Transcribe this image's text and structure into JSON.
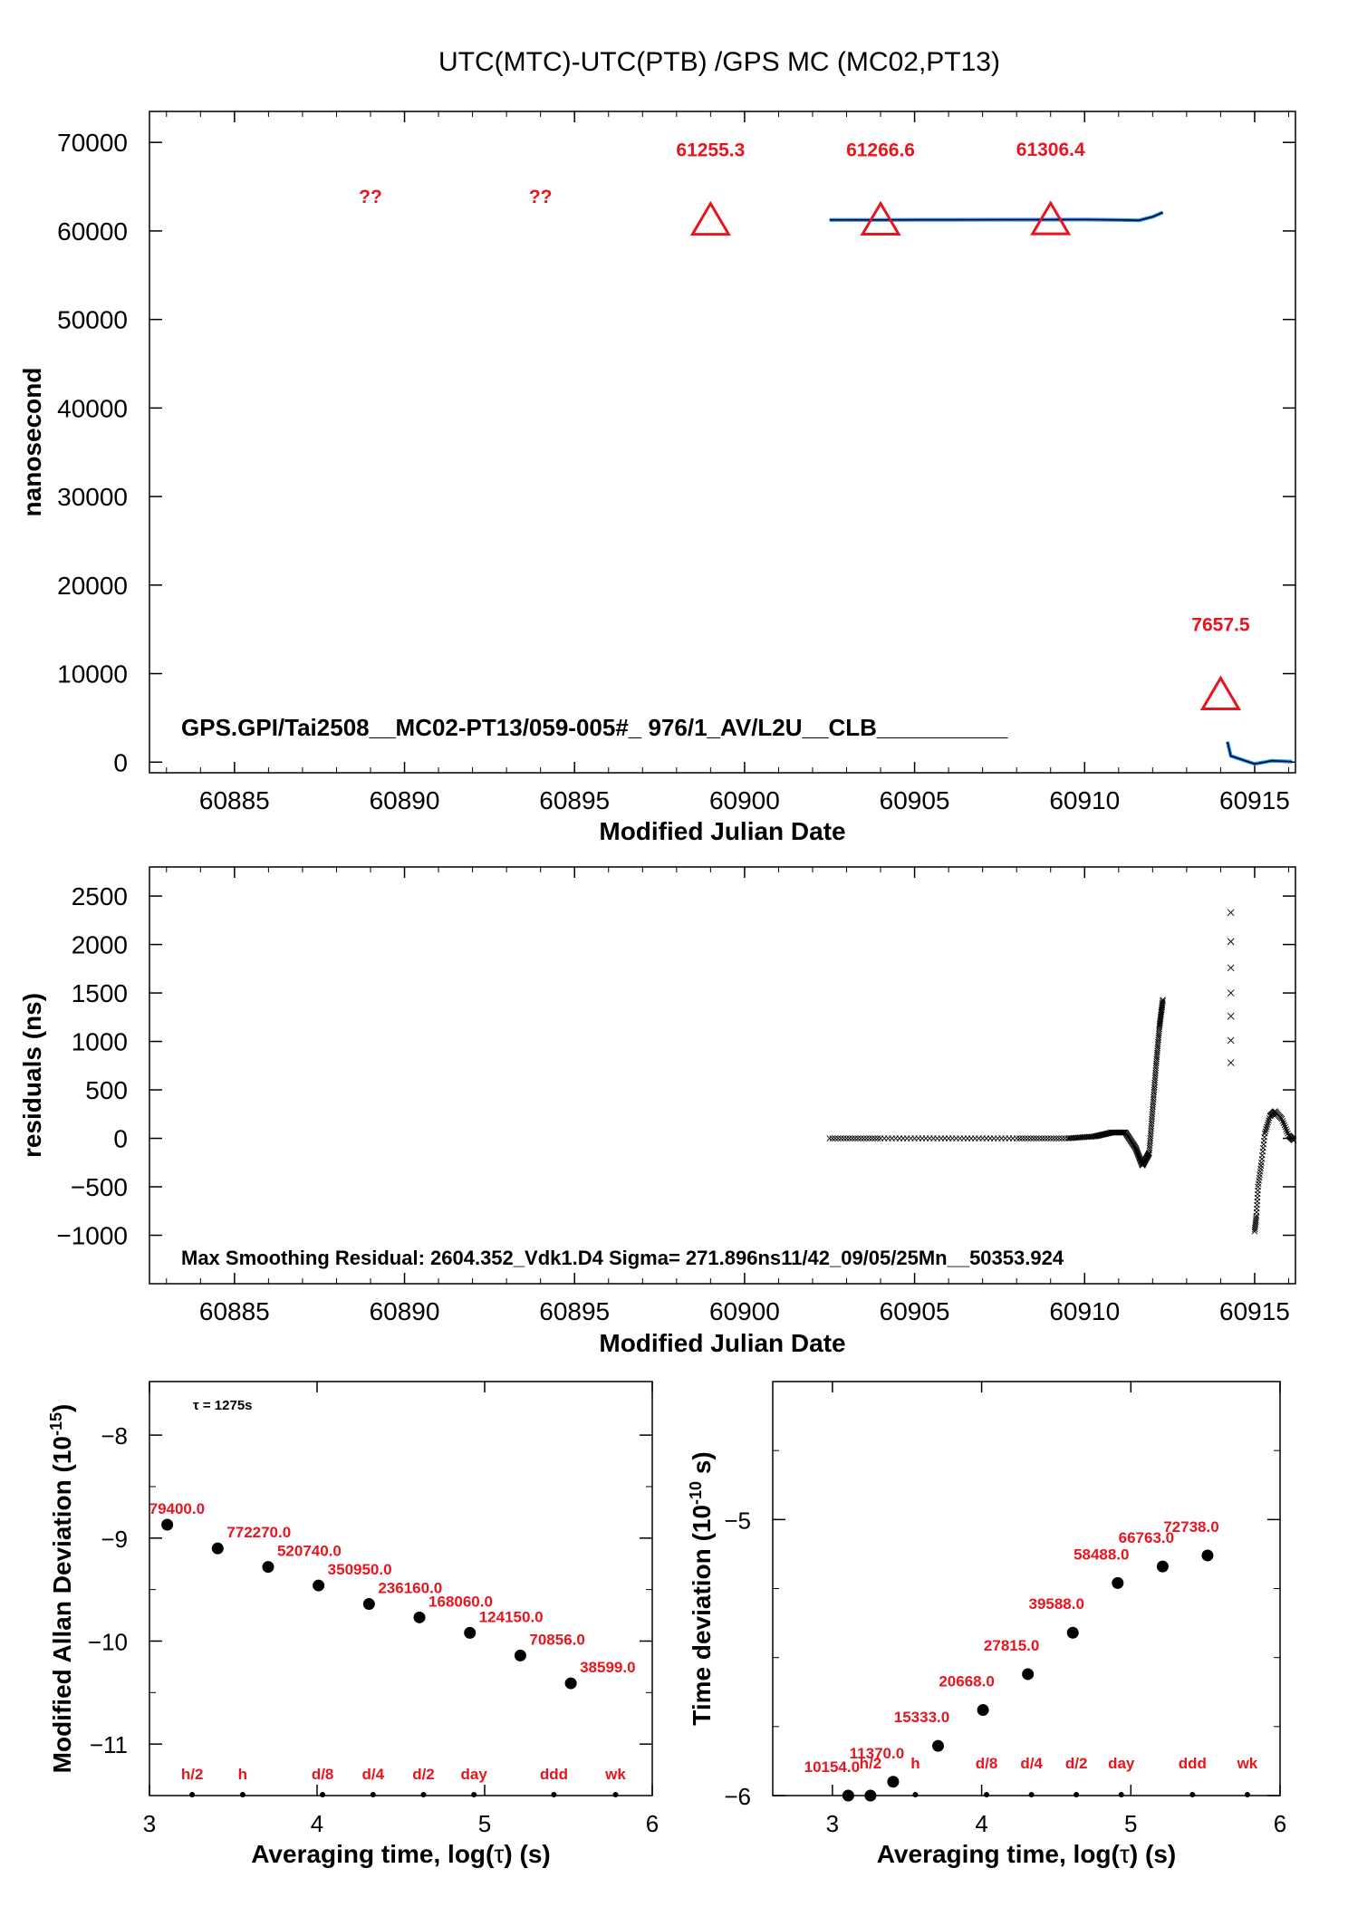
{
  "page_title": "UTC(MTC)-UTC(PTB)  /GPS  MC  (MC02,PT13)",
  "colors": {
    "marker": "#e8141e",
    "fit": "#1e90ff",
    "data": "#000000"
  },
  "chart_data": [
    {
      "id": "offset",
      "type": "line",
      "xlabel": "Modified Julian Date",
      "ylabel": "nanosecond",
      "xlim": [
        60882.5,
        60916.2
      ],
      "ylim": [
        -1200,
        73500
      ],
      "xticks": [
        60885,
        60890,
        60895,
        60900,
        60905,
        60910,
        60915
      ],
      "xtick_labels": [
        "60885",
        "60890",
        "60895",
        "60900",
        "60905",
        "60910",
        "60915"
      ],
      "yticks": [
        0,
        10000,
        20000,
        30000,
        40000,
        50000,
        60000,
        70000
      ],
      "ytick_labels": [
        "0",
        "10000",
        "20000",
        "30000",
        "40000",
        "50000",
        "60000",
        "70000"
      ],
      "series": [
        {
          "segments": [
            {
              "x": [
                60902.5,
                60904.0,
                60906.0,
                60908.0,
                60910.0,
                60911.0,
                60911.6,
                60912.0,
                60912.3
              ],
              "y": [
                61240,
                61250,
                61260,
                61270,
                61280,
                61250,
                61200,
                61600,
                62100
              ]
            },
            {
              "x": [
                60914.2,
                60914.3,
                60915.0,
                60915.5,
                60916.1
              ],
              "y": [
                2300,
                700,
                -200,
                150,
                50
              ]
            }
          ]
        }
      ],
      "markers": [
        {
          "x": 60899.0,
          "y": 61255.3,
          "label": "61255.3"
        },
        {
          "x": 60904.0,
          "y": 61266.6,
          "label": "61266.6"
        },
        {
          "x": 60909.0,
          "y": 61306.4,
          "label": "61306.4"
        },
        {
          "x": 60914.0,
          "y": 7657.5,
          "label": "7657.5"
        }
      ],
      "unknown_markers": [
        {
          "x": 60889.0,
          "label": "??"
        },
        {
          "x": 60894.0,
          "label": "??"
        }
      ],
      "annotation": "GPS.GPI/Tai2508__MC02-PT13/059-005#_  976/1_AV/L2U__CLB__________"
    },
    {
      "id": "residuals",
      "type": "scatter",
      "xlabel": "Modified Julian Date",
      "ylabel": "residuals (ns)",
      "xlim": [
        60882.5,
        60916.2
      ],
      "ylim": [
        -1500,
        2800
      ],
      "xticks": [
        60885,
        60890,
        60895,
        60900,
        60905,
        60910,
        60915
      ],
      "xtick_labels": [
        "60885",
        "60890",
        "60895",
        "60900",
        "60905",
        "60910",
        "60915"
      ],
      "yticks": [
        -1000,
        -500,
        0,
        500,
        1000,
        1500,
        2000,
        2500
      ],
      "ytick_labels": [
        "−1000",
        "−500",
        "0",
        "500",
        "1000",
        "1500",
        "2000",
        "2500"
      ],
      "curve_1": {
        "x": [
          60902.5,
          60904,
          60906,
          60908,
          60909.5,
          60910.3,
          60910.8,
          60911.2,
          60911.5,
          60911.7,
          60911.9,
          60912.0,
          60912.1,
          60912.2,
          60912.3
        ],
        "y": [
          0,
          0,
          0,
          0,
          0,
          20,
          60,
          60,
          -100,
          -280,
          -150,
          300,
          750,
          1150,
          1430
        ]
      },
      "isolated": {
        "x": [
          60914.3,
          60914.3,
          60914.3,
          60914.3,
          60914.3,
          60914.3,
          60914.3
        ],
        "y": [
          2330,
          2030,
          1760,
          1500,
          1260,
          1010,
          780
        ]
      },
      "curve_2": {
        "x": [
          60915.0,
          60915.05,
          60915.1,
          60915.2,
          60915.3,
          60915.45,
          60915.6,
          60915.8,
          60916.0,
          60916.15
        ],
        "y": [
          -960,
          -800,
          -500,
          -250,
          50,
          230,
          280,
          200,
          30,
          -20
        ]
      },
      "annotation": "Max Smoothing Residual: 2604.352_Vdk1.D4  Sigma= 271.896ns11/42_09/05/25Mn__50353.924"
    },
    {
      "id": "mdev",
      "type": "scatter",
      "xlabel_parts": [
        "Averaging time, log(",
        "τ",
        ") (s)"
      ],
      "ylabel": "Modified Allan Deviation (10",
      "ylabel_exp": "-15",
      "ylabel_tail": ")",
      "xlim": [
        3,
        6
      ],
      "ylim": [
        -11.5,
        -7.48
      ],
      "xticks": [
        3,
        4,
        5,
        6
      ],
      "xtick_labels": [
        "3",
        "4",
        "5",
        "6"
      ],
      "yticks": [
        -8,
        -9,
        -10,
        -11
      ],
      "ytick_labels": [
        "−8",
        "−9",
        "−10",
        "−11"
      ],
      "tau_note": "τ = 1275s",
      "x": [
        3.106,
        3.407,
        3.708,
        4.009,
        4.31,
        4.611,
        4.912,
        5.213,
        5.514
      ],
      "y": [
        -8.87,
        -9.1,
        -9.28,
        -9.46,
        -9.64,
        -9.77,
        -9.92,
        -10.14,
        -10.41
      ],
      "point_labels": [
        "79400.0",
        "772270.0",
        "520740.0",
        "350950.0",
        "236160.0",
        "168060.0",
        "124150.0",
        "70856.0",
        "38599.0"
      ],
      "ref_ticks": [
        {
          "x": 3.255,
          "label": "h/2"
        },
        {
          "x": 3.556,
          "label": "h"
        },
        {
          "x": 4.033,
          "label": "d/8"
        },
        {
          "x": 4.334,
          "label": "d/4"
        },
        {
          "x": 4.635,
          "label": "d/2"
        },
        {
          "x": 4.936,
          "label": "day"
        },
        {
          "x": 5.413,
          "label": "ddd"
        },
        {
          "x": 5.781,
          "label": "wk"
        }
      ]
    },
    {
      "id": "tdev",
      "type": "scatter",
      "xlabel_parts": [
        "Averaging time, log(",
        "τ",
        ") (s)"
      ],
      "ylabel": "Time deviation (10",
      "ylabel_exp": "-10",
      "ylabel_tail": " s)",
      "xlim": [
        2.6,
        6
      ],
      "ylim": [
        -6,
        -4.5
      ],
      "xticks": [
        3,
        4,
        5,
        6
      ],
      "xtick_labels": [
        "3",
        "4",
        "5",
        "6"
      ],
      "yticks": [
        -5,
        -6
      ],
      "ytick_labels": [
        "−5",
        "−6"
      ],
      "x": [
        3.106,
        3.255,
        3.407,
        3.708,
        4.009,
        4.31,
        4.611,
        4.912,
        5.213,
        5.514
      ],
      "y": [
        -6.0,
        -6.0,
        -5.95,
        -5.82,
        -5.69,
        -5.56,
        -5.41,
        -5.23,
        -5.17,
        -5.13
      ],
      "point_labels": [
        "10154.0",
        "",
        "11370.0",
        "15333.0",
        "20668.0",
        "27815.0",
        "39588.0",
        "58488.0",
        "66763.0",
        "72738.0"
      ],
      "ref_ticks": [
        {
          "x": 3.255,
          "label": "h/2"
        },
        {
          "x": 3.556,
          "label": "h"
        },
        {
          "x": 4.033,
          "label": "d/8"
        },
        {
          "x": 4.334,
          "label": "d/4"
        },
        {
          "x": 4.635,
          "label": "d/2"
        },
        {
          "x": 4.936,
          "label": "day"
        },
        {
          "x": 5.413,
          "label": "ddd"
        },
        {
          "x": 5.781,
          "label": "wk"
        }
      ]
    }
  ]
}
